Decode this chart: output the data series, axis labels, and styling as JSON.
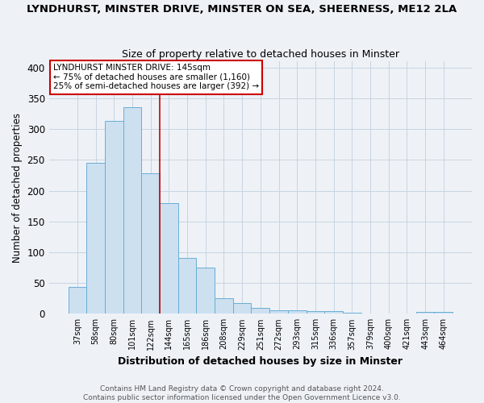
{
  "title": "LYNDHURST, MINSTER DRIVE, MINSTER ON SEA, SHEERNESS, ME12 2LA",
  "subtitle": "Size of property relative to detached houses in Minster",
  "xlabel": "Distribution of detached houses by size in Minster",
  "ylabel": "Number of detached properties",
  "bar_labels": [
    "37sqm",
    "58sqm",
    "80sqm",
    "101sqm",
    "122sqm",
    "144sqm",
    "165sqm",
    "186sqm",
    "208sqm",
    "229sqm",
    "251sqm",
    "272sqm",
    "293sqm",
    "315sqm",
    "336sqm",
    "357sqm",
    "379sqm",
    "400sqm",
    "421sqm",
    "443sqm",
    "464sqm"
  ],
  "bar_values": [
    43,
    245,
    313,
    335,
    228,
    180,
    91,
    75,
    25,
    18,
    10,
    5,
    5,
    4,
    4,
    2,
    1,
    0,
    0,
    3,
    3
  ],
  "bar_color": "#cce0f0",
  "bar_edge_color": "#6aadd5",
  "vline_color": "#cc0000",
  "vline_position": 5,
  "ylim": [
    0,
    410
  ],
  "yticks": [
    0,
    50,
    100,
    150,
    200,
    250,
    300,
    350,
    400
  ],
  "annotation_title": "LYNDHURST MINSTER DRIVE: 145sqm",
  "annotation_line1": "← 75% of detached houses are smaller (1,160)",
  "annotation_line2": "25% of semi-detached houses are larger (392) →",
  "footer_line1": "Contains HM Land Registry data © Crown copyright and database right 2024.",
  "footer_line2": "Contains public sector information licensed under the Open Government Licence v3.0.",
  "bg_color": "#eef2f7",
  "plot_bg_color": "#eef2f7",
  "grid_color": "#c8d4e0"
}
